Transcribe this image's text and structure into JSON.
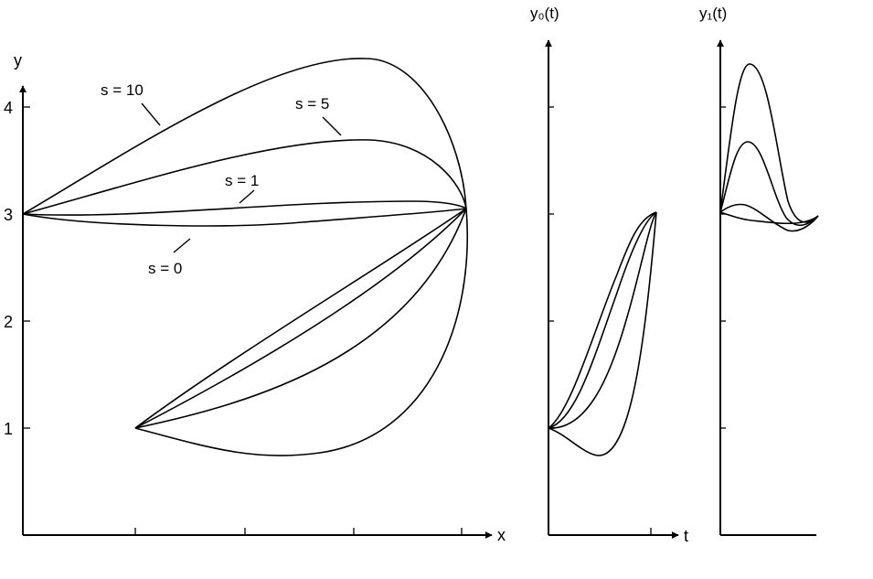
{
  "main_plot": {
    "y_axis_label": "y",
    "x_axis_label": "x",
    "y_ticks": [
      "1",
      "2",
      "3",
      "4"
    ],
    "curve_labels": [
      "s = 10",
      "s = 5",
      "s = 1",
      "s = 0"
    ]
  },
  "y0_plot": {
    "title": "y₀(t)",
    "x_axis_label": "t"
  },
  "y1_plot": {
    "title": "y₁(t)"
  }
}
